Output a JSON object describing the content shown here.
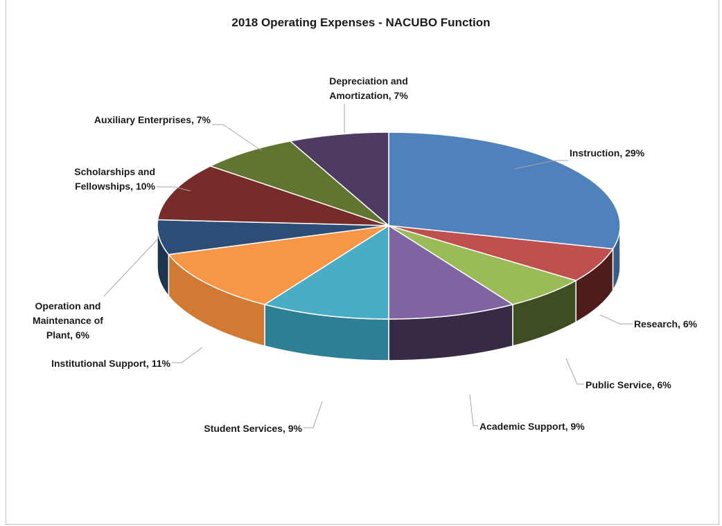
{
  "chart_data": {
    "type": "pie",
    "title": "2018 Operating Expenses  - NACUBO Function",
    "unit": "%",
    "slices": [
      {
        "label": [
          "Instruction, 29%"
        ],
        "value": 29,
        "color": "#4f81bd",
        "side": "#385d8a"
      },
      {
        "label": [
          "Research, 6%"
        ],
        "value": 6,
        "color": "#c0504d",
        "side": "#4e1c1b"
      },
      {
        "label": [
          "Public Service, 6%"
        ],
        "value": 6,
        "color": "#9bbb59",
        "side": "#3f4d23"
      },
      {
        "label": [
          "Academic Support, 9%"
        ],
        "value": 9,
        "color": "#8064a2",
        "side": "#362a46"
      },
      {
        "label": [
          "Student Services, 9%"
        ],
        "value": 9,
        "color": "#4bacc6",
        "side": "#2f7f94"
      },
      {
        "label": [
          "Institutional Support, 11%"
        ],
        "value": 11,
        "color": "#f79646",
        "side": "#d07a33"
      },
      {
        "label": [
          "Operation and",
          "Maintenance of",
          "Plant, 6%"
        ],
        "value": 6,
        "color": "#2c4d75",
        "side": "#1e3550"
      },
      {
        "label": [
          "Scholarships and",
          "Fellowships, 10%"
        ],
        "value": 10,
        "color": "#772c2a",
        "side": "#4d1c1b"
      },
      {
        "label": [
          "Auxiliary Enterprises, 7%"
        ],
        "value": 7,
        "color": "#5f7530",
        "side": "#3e4d20"
      },
      {
        "label": [
          "Depreciation and",
          "Amortization, 7%"
        ],
        "value": 7,
        "color": "#4d3b62",
        "side": "#302540"
      }
    ]
  }
}
